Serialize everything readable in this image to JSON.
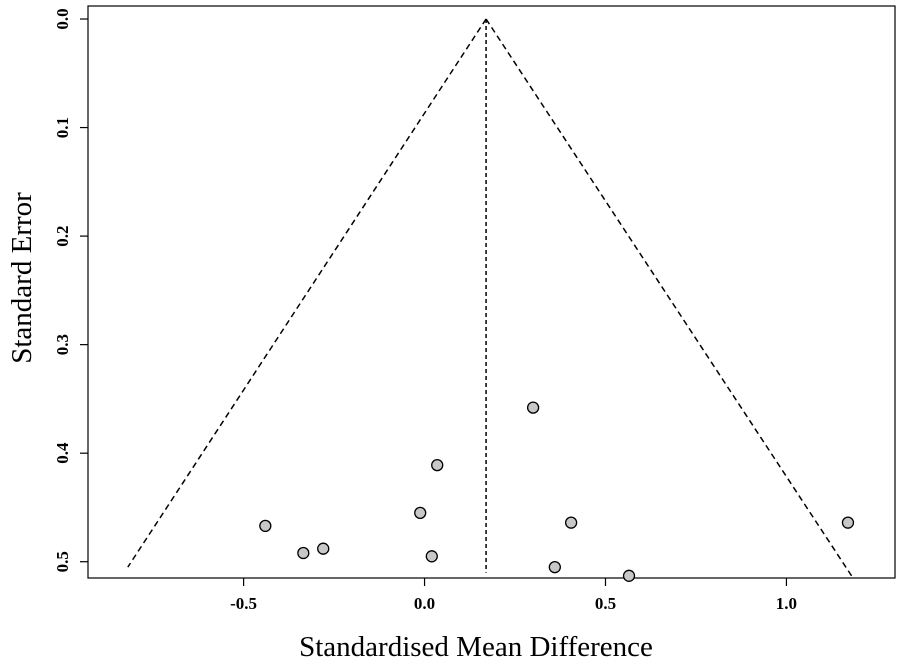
{
  "chart_data": {
    "type": "scatter",
    "title": "",
    "xlabel": "Standardised Mean Difference",
    "ylabel": "Standard Error",
    "xlim": [
      -0.93,
      1.3
    ],
    "ylim": [
      0.515,
      -0.012
    ],
    "y_reversed": true,
    "x_ticks": [
      {
        "value": -0.5,
        "label": "-0.5"
      },
      {
        "value": 0.0,
        "label": "0.0"
      },
      {
        "value": 0.5,
        "label": "0.5"
      },
      {
        "value": 1.0,
        "label": "1.0"
      }
    ],
    "y_ticks": [
      {
        "value": 0.0,
        "label": "0.0"
      },
      {
        "value": 0.1,
        "label": "0.1"
      },
      {
        "value": 0.2,
        "label": "0.2"
      },
      {
        "value": 0.3,
        "label": "0.3"
      },
      {
        "value": 0.4,
        "label": "0.4"
      },
      {
        "value": 0.5,
        "label": "0.5"
      }
    ],
    "pooled_estimate": 0.17,
    "funnel": {
      "apex": [
        0.17,
        0.0
      ],
      "left_end": [
        -0.82,
        0.505
      ],
      "right_end": [
        1.18,
        0.513
      ],
      "vertical_line_end_se": 0.51
    },
    "points": [
      {
        "x": 0.3,
        "y": 0.358
      },
      {
        "x": 0.035,
        "y": 0.411
      },
      {
        "x": -0.012,
        "y": 0.455
      },
      {
        "x": 0.405,
        "y": 0.464
      },
      {
        "x": -0.44,
        "y": 0.467
      },
      {
        "x": -0.28,
        "y": 0.488
      },
      {
        "x": -0.335,
        "y": 0.492
      },
      {
        "x": 0.02,
        "y": 0.495
      },
      {
        "x": 0.36,
        "y": 0.505
      },
      {
        "x": 0.565,
        "y": 0.513
      },
      {
        "x": 1.17,
        "y": 0.464
      }
    ],
    "point_fill": "#c8c8c8",
    "point_stroke": "#000000",
    "grid": false,
    "legend": "none"
  }
}
